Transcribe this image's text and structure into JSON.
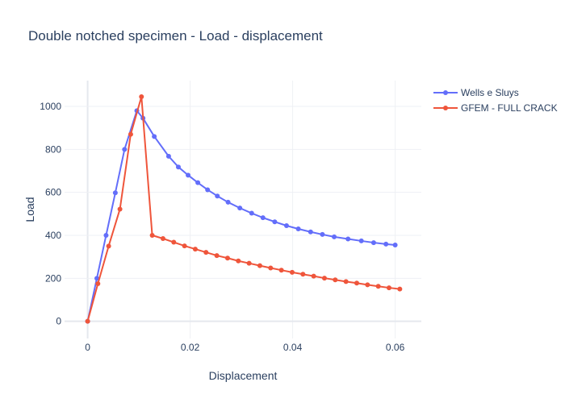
{
  "chart_data": {
    "type": "line",
    "title": "Double notched specimen - Load - displacement",
    "xlabel": "Displacement",
    "ylabel": "Load",
    "xlim": [
      -0.0045,
      0.0651
    ],
    "ylim": [
      -80,
      1120
    ],
    "xticks": [
      0,
      0.02,
      0.04,
      0.06
    ],
    "xtick_labels": [
      "0",
      "0.02",
      "0.04",
      "0.06"
    ],
    "yticks": [
      0,
      200,
      400,
      600,
      800,
      1000
    ],
    "ytick_labels": [
      "0",
      "200",
      "400",
      "600",
      "800",
      "1000"
    ],
    "grid": true,
    "legend_position": "top-right",
    "series": [
      {
        "name": "Wells e Sluys",
        "color": "#636efa",
        "x": [
          0,
          0.0018,
          0.0036,
          0.0054,
          0.0072,
          0.0096,
          0.0108,
          0.013,
          0.0158,
          0.0177,
          0.0196,
          0.0215,
          0.0234,
          0.0253,
          0.0274,
          0.0297,
          0.032,
          0.0342,
          0.0365,
          0.0388,
          0.0411,
          0.0435,
          0.0458,
          0.0481,
          0.0508,
          0.0534,
          0.0558,
          0.0582,
          0.06
        ],
        "y": [
          0,
          200,
          400,
          598,
          800,
          980,
          945,
          860,
          768,
          718,
          680,
          645,
          612,
          583,
          554,
          527,
          503,
          482,
          463,
          445,
          430,
          416,
          404,
          393,
          383,
          374,
          366,
          359,
          355
        ]
      },
      {
        "name": "GFEM - FULL CRACK",
        "color": "#ef553b",
        "x": [
          0,
          0.002,
          0.0041,
          0.0063,
          0.0084,
          0.0105,
          0.0126,
          0.0147,
          0.0168,
          0.0189,
          0.021,
          0.0231,
          0.0252,
          0.0273,
          0.0294,
          0.0315,
          0.0336,
          0.0357,
          0.0378,
          0.0399,
          0.042,
          0.0441,
          0.0462,
          0.0483,
          0.0504,
          0.0525,
          0.0546,
          0.0567,
          0.0588,
          0.0609
        ],
        "y": [
          0,
          175,
          350,
          522,
          870,
          1045,
          400,
          385,
          368,
          351,
          336,
          321,
          306,
          294,
          281,
          270,
          259,
          248,
          238,
          228,
          219,
          210,
          201,
          193,
          185,
          178,
          170,
          163,
          156,
          150
        ]
      }
    ]
  }
}
